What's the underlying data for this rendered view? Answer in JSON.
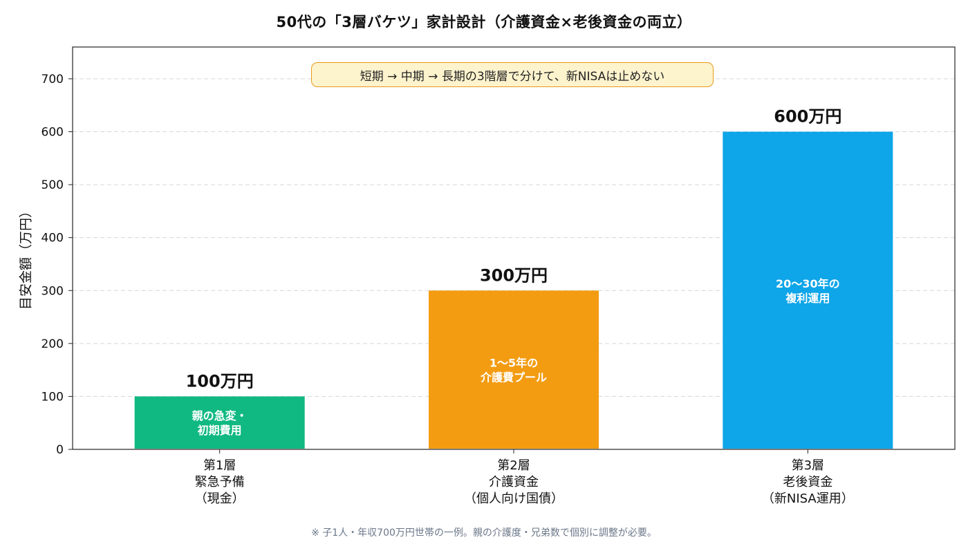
{
  "chart_data": {
    "type": "bar",
    "title": "50代の「3層バケツ」家計設計（介護資金×老後資金の両立）",
    "ylabel": "目安金額（万円）",
    "xlabel": "",
    "ylim": [
      0,
      760
    ],
    "yticks": [
      "0",
      "100",
      "200",
      "300",
      "400",
      "500",
      "600",
      "700"
    ],
    "grid": "horizontal-dashed",
    "categories": [
      [
        "第1層",
        "緊急予備",
        "（現金）"
      ],
      [
        "第2層",
        "介護資金",
        "（個人向け国債）"
      ],
      [
        "第3層",
        "老後資金",
        "（新NISA運用）"
      ]
    ],
    "values": [
      100,
      300,
      600
    ],
    "value_labels": [
      "100万円",
      "300万円",
      "600万円"
    ],
    "bar_inner_labels": [
      [
        "親の急変・",
        "初期費用"
      ],
      [
        "1〜5年の",
        "介護費プール"
      ],
      [
        "20〜30年の",
        "複利運用"
      ]
    ],
    "colors": [
      "#10b981",
      "#f39c12",
      "#0ea5e9"
    ],
    "annotation": "短期 → 中期 → 長期の3階層で分けて、新NISAは止めない",
    "footnote": "※ 子1人・年収700万円世帯の一例。親の介護度・兄弟数で個別に調整が必要。"
  }
}
